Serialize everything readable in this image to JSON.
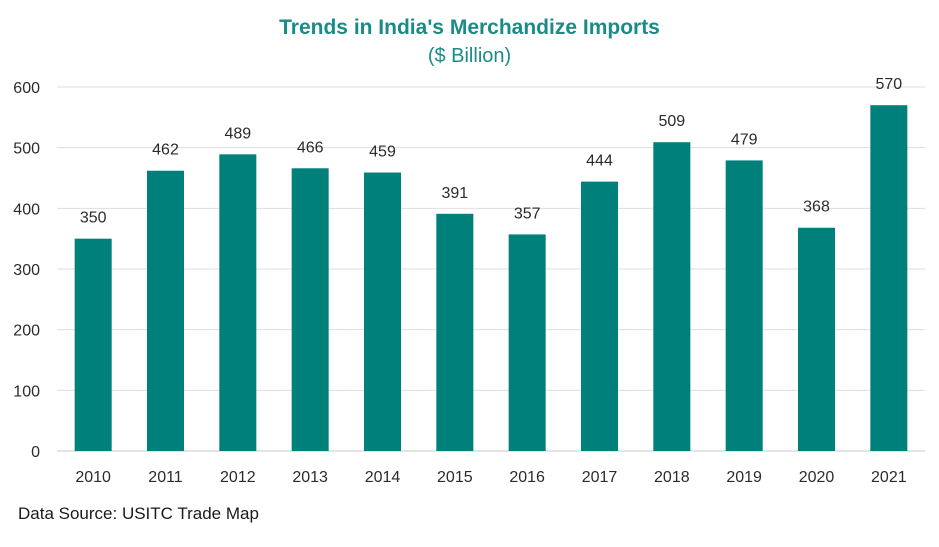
{
  "chart_data": {
    "type": "bar",
    "title": "Trends in India's Merchandize Imports",
    "subtitle": "($ Billion)",
    "categories": [
      "2010",
      "2011",
      "2012",
      "2013",
      "2014",
      "2015",
      "2016",
      "2017",
      "2018",
      "2019",
      "2020",
      "2021"
    ],
    "values": [
      350,
      462,
      489,
      466,
      459,
      391,
      357,
      444,
      509,
      479,
      368,
      570
    ],
    "ylim": [
      0,
      600
    ],
    "yticks": [
      0,
      100,
      200,
      300,
      400,
      500,
      600
    ],
    "grid": true,
    "bar_color": "#00807a",
    "title_color": "#1a8c87"
  },
  "footer": {
    "source": "Data Source: USITC Trade Map"
  }
}
